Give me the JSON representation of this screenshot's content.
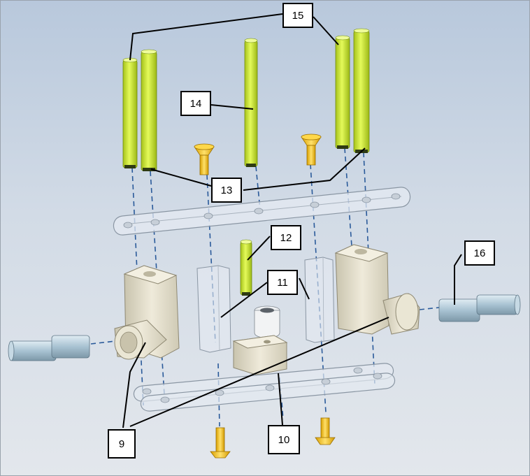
{
  "callouts": {
    "c15": "15",
    "c14": "14",
    "c13": "13",
    "c12": "12",
    "c11": "11",
    "c16": "16",
    "c9": "9",
    "c10": "10"
  },
  "colors": {
    "rod": "#c8ea2a",
    "screw": "#f2c21a",
    "ivory": "#e6e2cf",
    "pipe": "#b6d0de",
    "transparent_part": "#dfe6ee",
    "dash_line": "#2a5a9a"
  }
}
